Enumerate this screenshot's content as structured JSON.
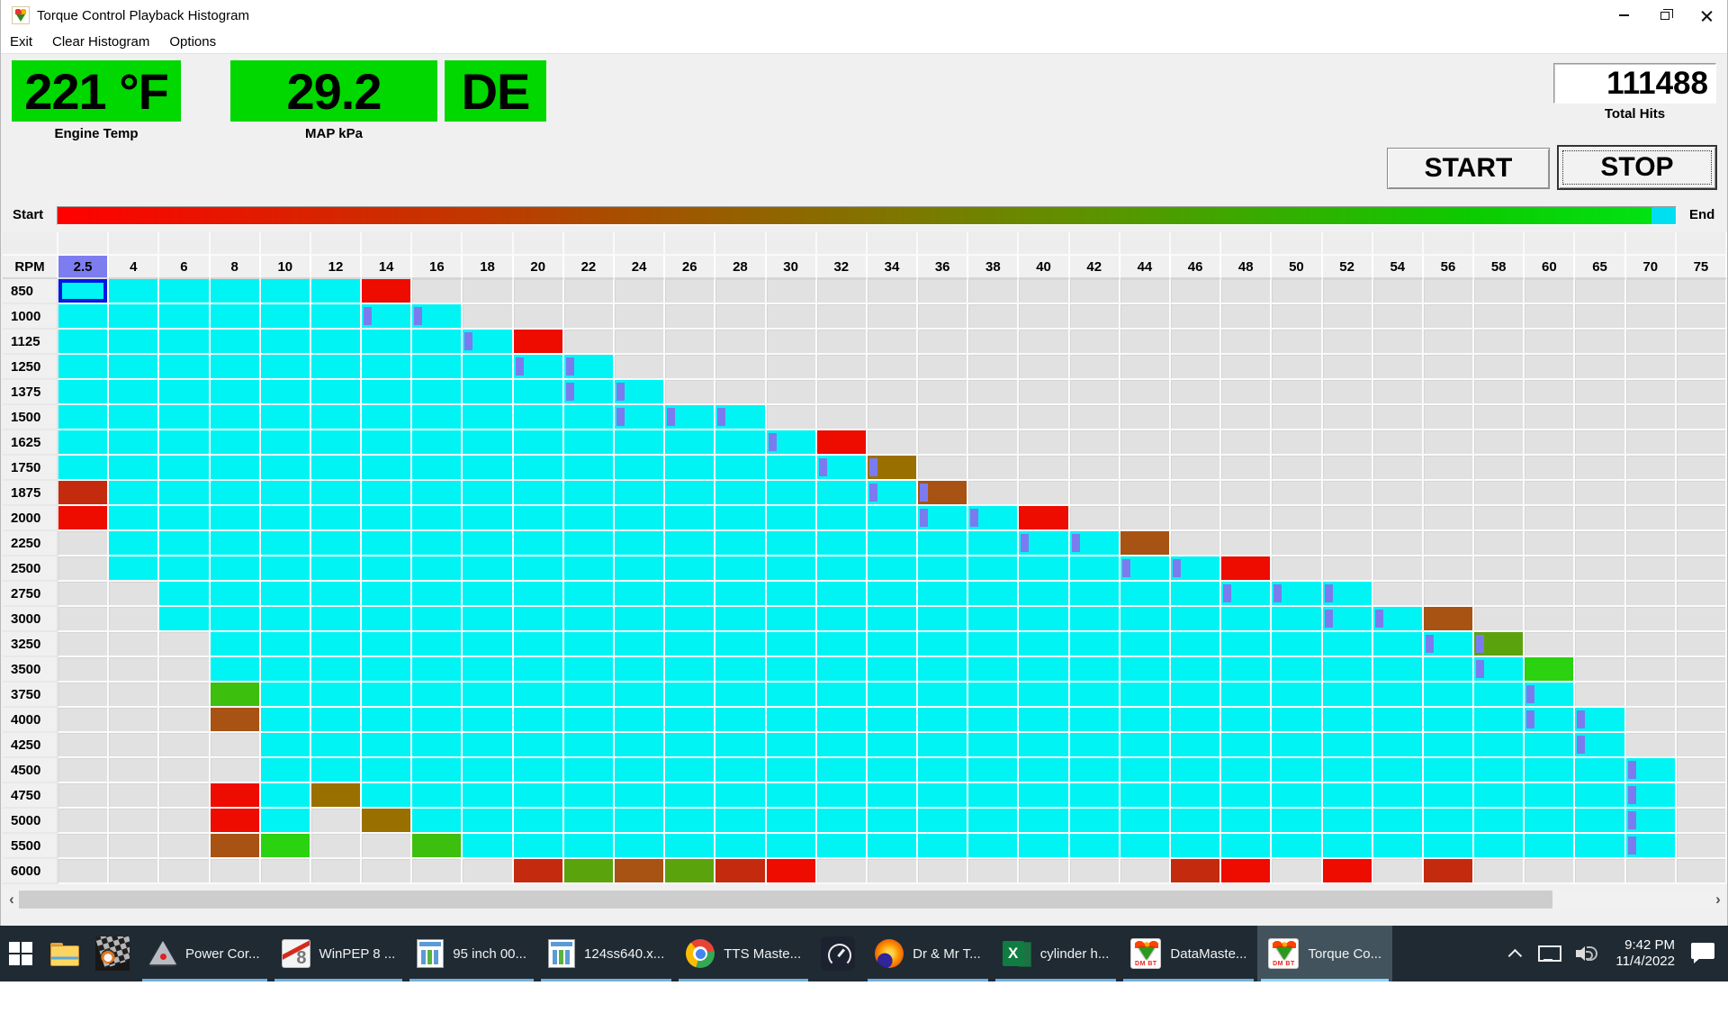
{
  "window": {
    "title": "Torque Control Playback Histogram"
  },
  "menu": {
    "items": [
      "Exit",
      "Clear Histogram",
      "Options"
    ]
  },
  "readouts": [
    {
      "value": "221 °F",
      "label": "Engine Temp"
    },
    {
      "value": "29.2",
      "label": "MAP kPa"
    },
    {
      "value": "DE",
      "label": ""
    }
  ],
  "total_hits": {
    "value": "111488",
    "label": "Total Hits"
  },
  "buttons": {
    "start": "START",
    "stop": "STOP"
  },
  "playback_bar": {
    "start_label": "Start",
    "end_label": "End",
    "gradient": [
      "#ff0000",
      "#e11b00",
      "#c23600",
      "#a05500",
      "#837200",
      "#618f00",
      "#36ad00",
      "#0ccb00",
      "#00e516"
    ],
    "end_segment_color": "#00dff2"
  },
  "colors": {
    "readout_green": "#00d800",
    "taskbar_bg": "#1f2a33",
    "taskbar_active_bg": "#42535d",
    "underline_blue": "#74b0d8",
    "underline_active": "#8fd2f8"
  },
  "histogram": {
    "corner_label": "RPM",
    "columns": [
      "2.5",
      "4",
      "6",
      "8",
      "10",
      "12",
      "14",
      "16",
      "18",
      "20",
      "22",
      "24",
      "26",
      "28",
      "30",
      "32",
      "34",
      "36",
      "38",
      "40",
      "42",
      "44",
      "46",
      "48",
      "50",
      "52",
      "54",
      "56",
      "58",
      "60",
      "65",
      "70",
      "75"
    ],
    "selected_column": "2.5",
    "colors": {
      "cyan": "#00f4f4",
      "red": "#ee0b00",
      "dark_red": "#c42a0e",
      "red_brown": "#a85214",
      "olive_brown": "#997000",
      "olive_green": "#5ba30d",
      "green": "#3dbf0d",
      "bright_green": "#2bd20f",
      "empty": "#e1e1e1"
    },
    "stripe_color": "#7b7bef",
    "header_highlight": "#7d7df0",
    "selected_cell_border": "#0016e6",
    "rows": [
      {
        "rpm": "850",
        "segs": [
          [
            0,
            5,
            "cyan"
          ],
          [
            6,
            6,
            "red"
          ]
        ],
        "stripes": [],
        "sel": 0
      },
      {
        "rpm": "1000",
        "segs": [
          [
            0,
            7,
            "cyan"
          ]
        ],
        "stripes": [
          6,
          7
        ]
      },
      {
        "rpm": "1125",
        "segs": [
          [
            0,
            8,
            "cyan"
          ],
          [
            9,
            9,
            "red"
          ]
        ],
        "stripes": [
          8
        ]
      },
      {
        "rpm": "1250",
        "segs": [
          [
            0,
            10,
            "cyan"
          ]
        ],
        "stripes": [
          9,
          10
        ]
      },
      {
        "rpm": "1375",
        "segs": [
          [
            0,
            11,
            "cyan"
          ]
        ],
        "stripes": [
          10,
          11
        ]
      },
      {
        "rpm": "1500",
        "segs": [
          [
            0,
            13,
            "cyan"
          ]
        ],
        "stripes": [
          11,
          12,
          13
        ]
      },
      {
        "rpm": "1625",
        "segs": [
          [
            0,
            14,
            "cyan"
          ],
          [
            15,
            15,
            "red"
          ]
        ],
        "stripes": [
          14
        ]
      },
      {
        "rpm": "1750",
        "segs": [
          [
            0,
            15,
            "cyan"
          ],
          [
            16,
            16,
            "olive_brown"
          ]
        ],
        "stripes": [
          15,
          16
        ]
      },
      {
        "rpm": "1875",
        "segs": [
          [
            0,
            0,
            "dark_red"
          ],
          [
            1,
            16,
            "cyan"
          ],
          [
            17,
            17,
            "red_brown"
          ]
        ],
        "stripes": [
          16,
          17
        ]
      },
      {
        "rpm": "2000",
        "segs": [
          [
            0,
            0,
            "red"
          ],
          [
            1,
            18,
            "cyan"
          ],
          [
            19,
            19,
            "red"
          ]
        ],
        "stripes": [
          17,
          18
        ]
      },
      {
        "rpm": "2250",
        "segs": [
          [
            1,
            20,
            "cyan"
          ],
          [
            21,
            21,
            "red_brown"
          ]
        ],
        "stripes": [
          19,
          20
        ]
      },
      {
        "rpm": "2500",
        "segs": [
          [
            1,
            22,
            "cyan"
          ],
          [
            23,
            23,
            "red"
          ]
        ],
        "stripes": [
          21,
          22
        ]
      },
      {
        "rpm": "2750",
        "segs": [
          [
            2,
            25,
            "cyan"
          ]
        ],
        "stripes": [
          23,
          24,
          25
        ]
      },
      {
        "rpm": "3000",
        "segs": [
          [
            2,
            26,
            "cyan"
          ],
          [
            27,
            27,
            "red_brown"
          ]
        ],
        "stripes": [
          25,
          26
        ]
      },
      {
        "rpm": "3250",
        "segs": [
          [
            3,
            27,
            "cyan"
          ],
          [
            28,
            28,
            "olive_green"
          ]
        ],
        "stripes": [
          27,
          28
        ]
      },
      {
        "rpm": "3500",
        "segs": [
          [
            3,
            28,
            "cyan"
          ],
          [
            29,
            29,
            "bright_green"
          ]
        ],
        "stripes": [
          28
        ]
      },
      {
        "rpm": "3750",
        "segs": [
          [
            3,
            3,
            "green"
          ],
          [
            4,
            29,
            "cyan"
          ]
        ],
        "stripes": [
          29
        ]
      },
      {
        "rpm": "4000",
        "segs": [
          [
            3,
            3,
            "red_brown"
          ],
          [
            4,
            30,
            "cyan"
          ]
        ],
        "stripes": [
          29,
          30
        ]
      },
      {
        "rpm": "4250",
        "segs": [
          [
            4,
            30,
            "cyan"
          ]
        ],
        "stripes": [
          30
        ]
      },
      {
        "rpm": "4500",
        "segs": [
          [
            4,
            31,
            "cyan"
          ]
        ],
        "stripes": [
          31
        ]
      },
      {
        "rpm": "4750",
        "segs": [
          [
            3,
            3,
            "red"
          ],
          [
            4,
            4,
            "cyan"
          ],
          [
            5,
            5,
            "olive_brown"
          ],
          [
            6,
            31,
            "cyan"
          ]
        ],
        "stripes": [
          31
        ]
      },
      {
        "rpm": "5000",
        "segs": [
          [
            3,
            3,
            "red"
          ],
          [
            4,
            4,
            "cyan"
          ],
          [
            6,
            6,
            "olive_brown"
          ],
          [
            7,
            31,
            "cyan"
          ]
        ],
        "stripes": [
          31
        ]
      },
      {
        "rpm": "5500",
        "segs": [
          [
            3,
            3,
            "red_brown"
          ],
          [
            4,
            4,
            "bright_green"
          ],
          [
            7,
            7,
            "green"
          ],
          [
            8,
            31,
            "cyan"
          ]
        ],
        "stripes": [
          31
        ]
      },
      {
        "rpm": "6000",
        "segs": [
          [
            9,
            9,
            "dark_red"
          ],
          [
            10,
            10,
            "olive_green"
          ],
          [
            11,
            11,
            "red_brown"
          ],
          [
            12,
            12,
            "olive_green"
          ],
          [
            13,
            13,
            "dark_red"
          ],
          [
            14,
            14,
            "red"
          ],
          [
            22,
            22,
            "dark_red"
          ],
          [
            23,
            23,
            "red"
          ],
          [
            25,
            25,
            "red"
          ],
          [
            27,
            27,
            "dark_red"
          ]
        ],
        "stripes": []
      }
    ]
  },
  "taskbar": {
    "dmbt_text": "DM BT",
    "winpep_glyph": "8",
    "excel_glyph": "X",
    "items": [
      {
        "icon": "windows-start",
        "label": ""
      },
      {
        "icon": "file-explorer",
        "label": ""
      },
      {
        "icon": "checker",
        "label": ""
      },
      {
        "icon": "power-core",
        "label": "Power Cor...",
        "underline": true
      },
      {
        "icon": "winpep",
        "label": "WinPEP 8 ...",
        "underline": true
      },
      {
        "icon": "sheet",
        "label": "95 inch 00...",
        "underline": true
      },
      {
        "icon": "sheet",
        "label": "124ss640.x...",
        "underline": true
      },
      {
        "icon": "chrome",
        "label": "TTS Maste...",
        "underline": true
      },
      {
        "icon": "gauge",
        "label": ""
      },
      {
        "icon": "firefox",
        "label": "Dr & Mr T...",
        "underline": true
      },
      {
        "icon": "excel",
        "label": "cylinder h...",
        "underline": true
      },
      {
        "icon": "dmbt",
        "label": "DataMaste...",
        "underline": true
      },
      {
        "icon": "dmbt",
        "label": "Torque Co...",
        "underline": true,
        "active": true
      }
    ],
    "tray": {
      "time": "9:42 PM",
      "date": "11/4/2022"
    }
  }
}
